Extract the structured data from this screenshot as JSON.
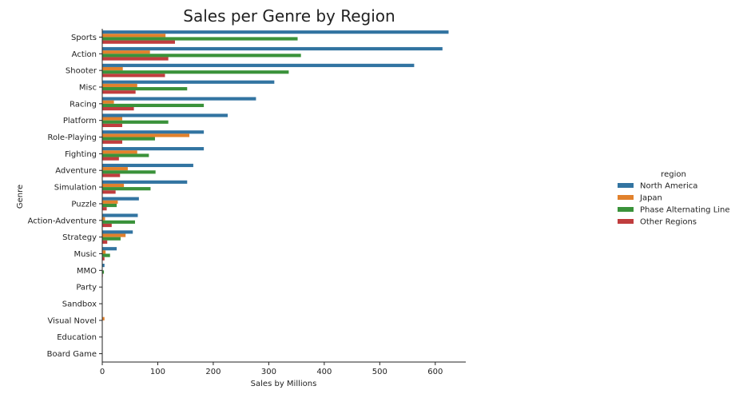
{
  "chart_data": {
    "type": "bar",
    "orientation": "horizontal",
    "title": "Sales per Genre by Region",
    "xlabel": "Sales by Millions",
    "ylabel": "Genre",
    "xlim": [
      0,
      655
    ],
    "xticks": [
      0,
      100,
      200,
      300,
      400,
      500,
      600
    ],
    "grid": false,
    "legend": {
      "title": "region",
      "placement": "right"
    },
    "categories": [
      "Sports",
      "Action",
      "Shooter",
      "Misc",
      "Racing",
      "Platform",
      "Role-Playing",
      "Fighting",
      "Adventure",
      "Simulation",
      "Puzzle",
      "Action-Adventure",
      "Strategy",
      "Music",
      "MMO",
      "Party",
      "Sandbox",
      "Visual Novel",
      "Education",
      "Board Game"
    ],
    "series": [
      {
        "name": "North America",
        "color": "#3274a1",
        "values": [
          624,
          613,
          562,
          310,
          277,
          226,
          183,
          183,
          164,
          153,
          66,
          64,
          55,
          26,
          4,
          0.5,
          0.5,
          0.5,
          0.3,
          0.2
        ]
      },
      {
        "name": "Japan",
        "color": "#e1812c",
        "values": [
          114,
          86,
          37,
          63,
          21,
          36,
          157,
          63,
          46,
          39,
          28,
          5,
          42,
          6,
          0.5,
          0.5,
          0.5,
          4,
          0.2,
          0.2
        ]
      },
      {
        "name": "Phase Alternating Line",
        "color": "#3a923a",
        "values": [
          352,
          358,
          336,
          153,
          183,
          119,
          95,
          84,
          96,
          87,
          26,
          59,
          33,
          14,
          3,
          0.5,
          0.5,
          0.5,
          0.2,
          0.2
        ]
      },
      {
        "name": "Other Regions",
        "color": "#c03d3e",
        "values": [
          131,
          119,
          113,
          60,
          57,
          36,
          36,
          30,
          32,
          24,
          8,
          17,
          9,
          4,
          1,
          0.3,
          0.3,
          0.3,
          0.1,
          0.1
        ]
      }
    ]
  }
}
